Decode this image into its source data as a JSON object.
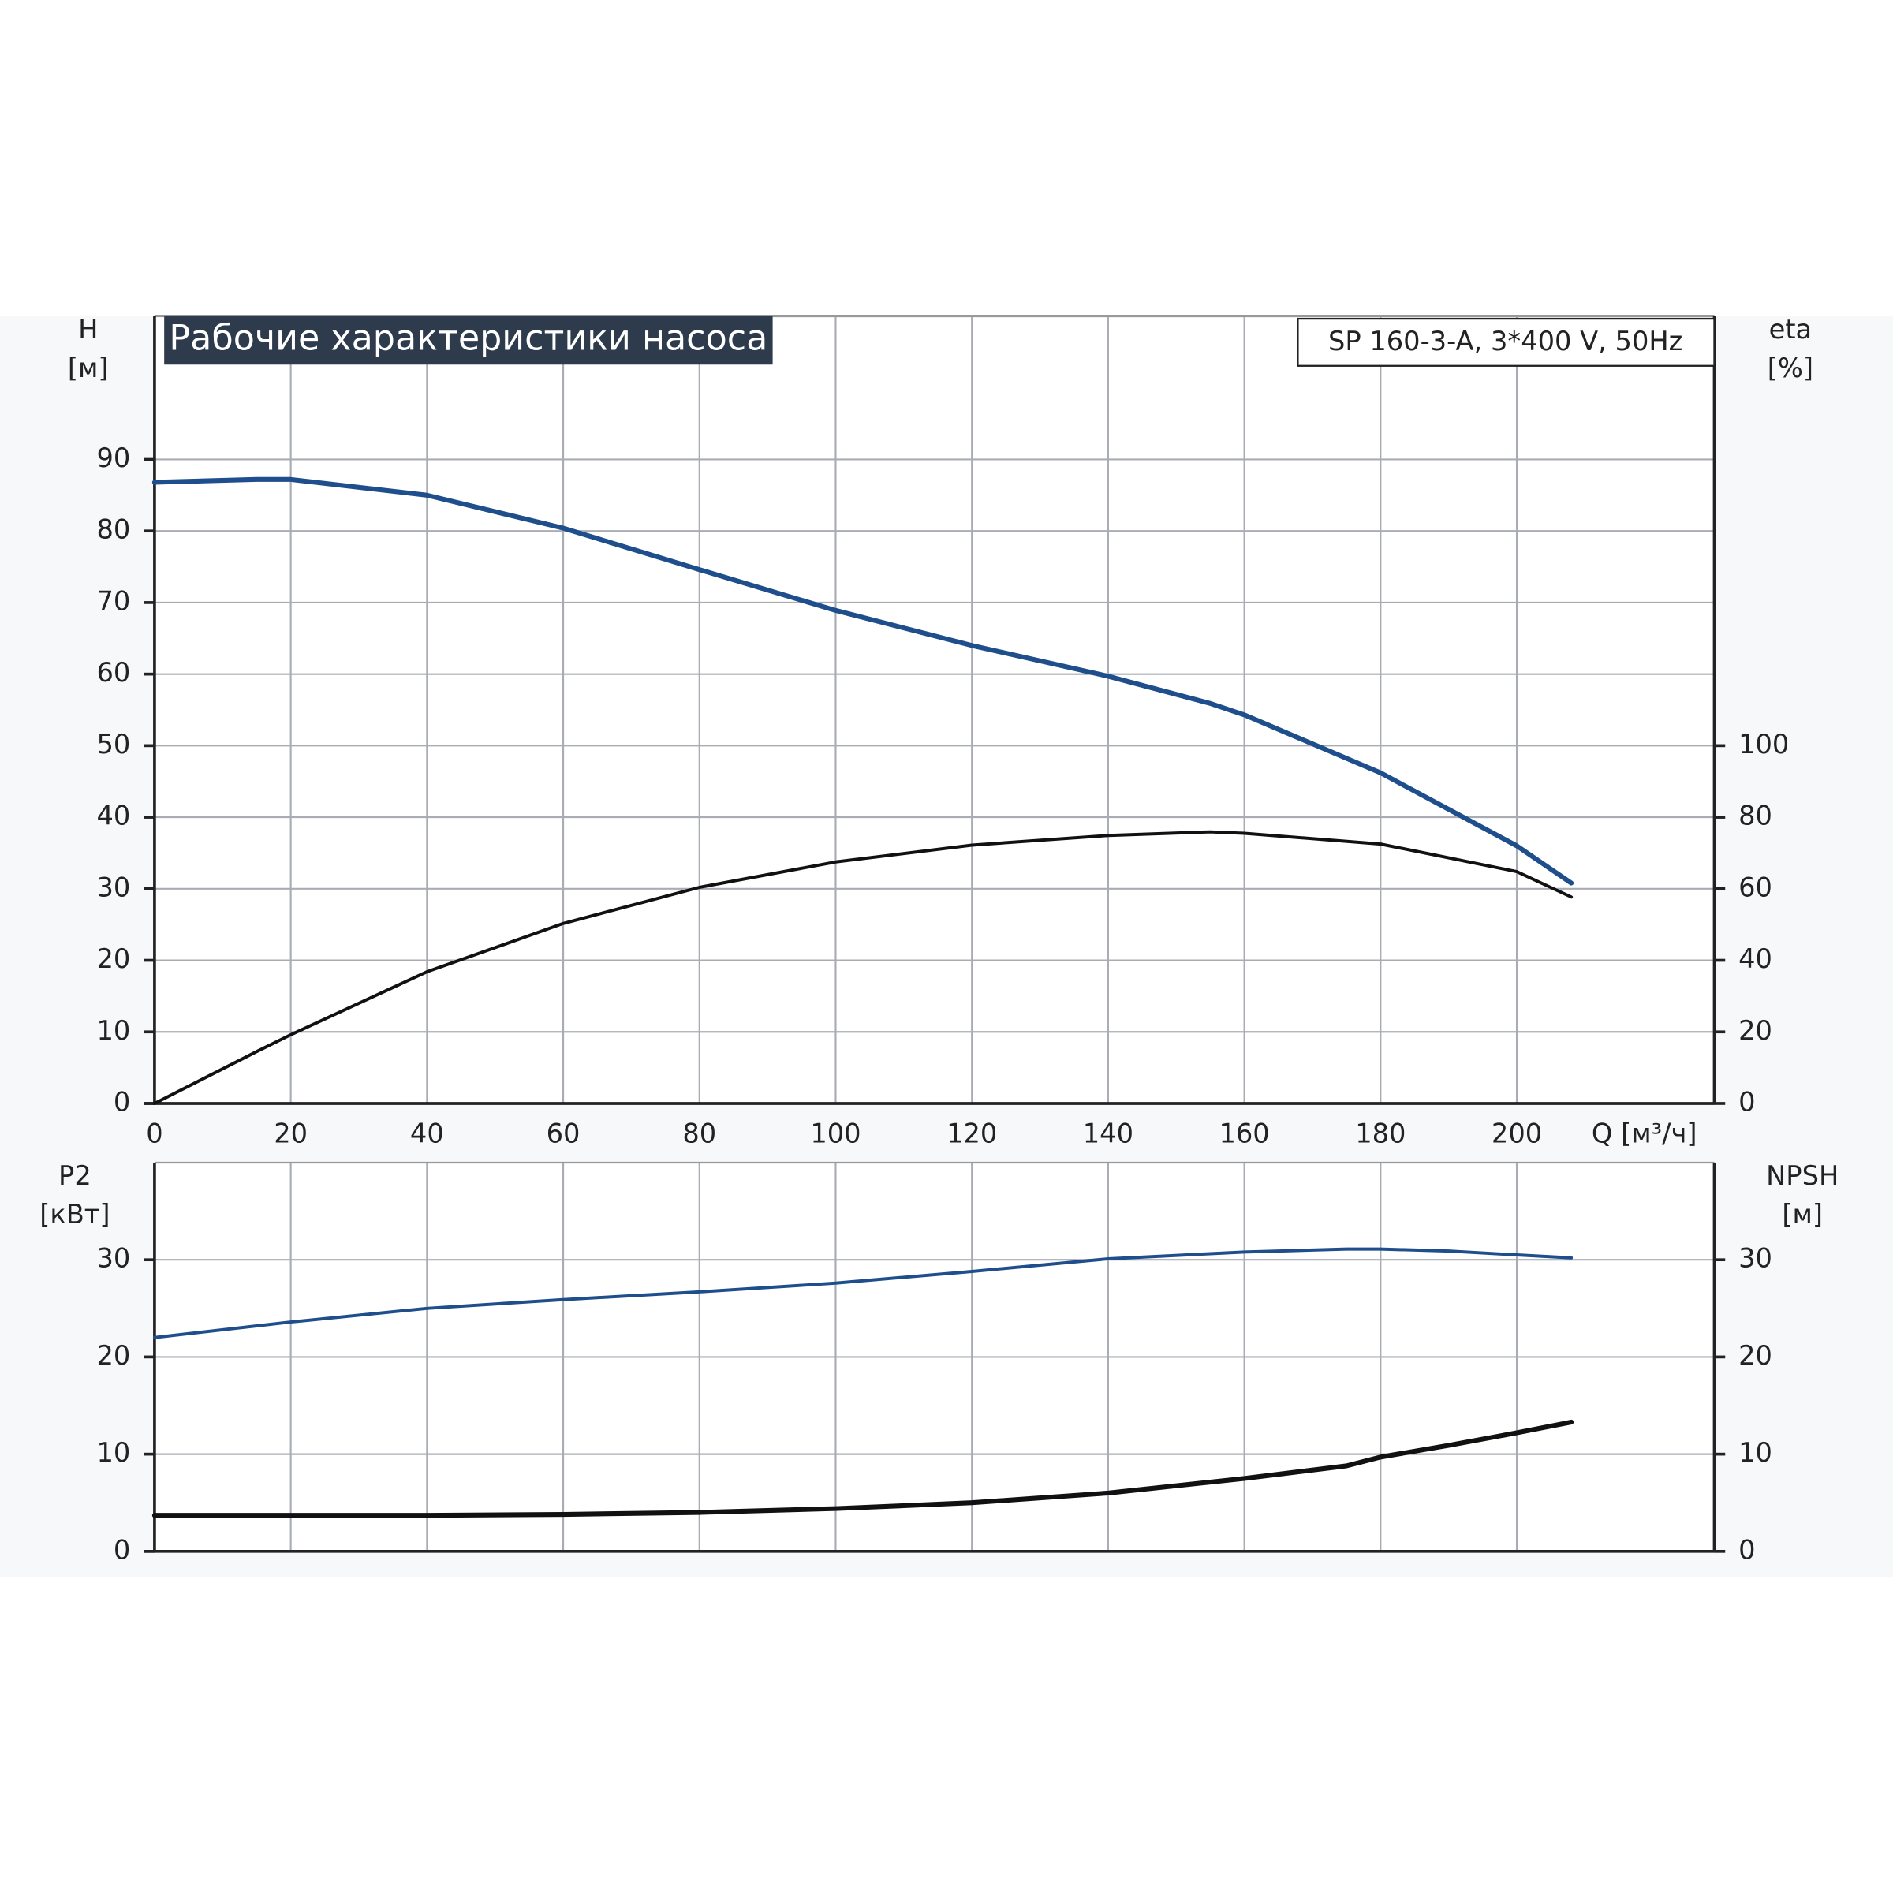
{
  "chart_data": [
    {
      "type": "line",
      "title": "Рабочие характеристики насоса",
      "subtitle": "SP 160-3-A, 3*400 V, 50Hz",
      "ylabel": "H",
      "yunit": "[м]",
      "y2label": "eta",
      "y2unit": "[%]",
      "xlabel": "Q [м³/ч]",
      "x": [
        0,
        15,
        20,
        40,
        60,
        80,
        100,
        120,
        140,
        155,
        160,
        180,
        200,
        208
      ],
      "series": [
        {
          "name": "H",
          "color": "#1f4e8c",
          "values": [
            86.8,
            87.2,
            87.2,
            85,
            80.4,
            74.6,
            68.9,
            64,
            59.7,
            55.9,
            54.3,
            46.2,
            36,
            30.8
          ]
        },
        {
          "name": "eta",
          "color": "#111111",
          "axis": "y2",
          "values": [
            0,
            14.5,
            19.2,
            36.8,
            50.3,
            60.4,
            67.5,
            72.2,
            74.9,
            75.9,
            75.5,
            72.5,
            64.8,
            57.7
          ]
        }
      ],
      "xlim": [
        0,
        229
      ],
      "xticks": [
        0,
        20,
        40,
        60,
        80,
        100,
        120,
        140,
        160,
        180,
        200
      ],
      "ylim": [
        0,
        110
      ],
      "yticks": [
        0,
        10,
        20,
        30,
        40,
        50,
        60,
        70,
        80,
        90
      ],
      "y2lim": [
        0,
        220
      ],
      "y2ticks": [
        0,
        20,
        40,
        60,
        80,
        100
      ],
      "grid": true
    },
    {
      "type": "line",
      "ylabel": "P2",
      "yunit": "[кВт]",
      "y2label": "NPSH",
      "y2unit": "[м]",
      "x": [
        0,
        15,
        20,
        40,
        60,
        80,
        100,
        120,
        140,
        160,
        175,
        180,
        190,
        200,
        208
      ],
      "series": [
        {
          "name": "P2",
          "color": "#1f4e8c",
          "values": [
            22,
            23.2,
            23.6,
            25,
            25.9,
            26.7,
            27.6,
            28.8,
            30.1,
            30.8,
            31.1,
            31.1,
            30.9,
            30.5,
            30.2
          ]
        },
        {
          "name": "NPSH",
          "color": "#111111",
          "axis": "y2",
          "values": [
            3.7,
            3.7,
            3.7,
            3.7,
            3.8,
            4,
            4.4,
            5,
            6,
            7.5,
            8.8,
            9.7,
            10.9,
            12.2,
            13.3
          ]
        }
      ],
      "xlim": [
        0,
        229
      ],
      "ylim": [
        0,
        40
      ],
      "yticks": [
        0,
        10,
        20,
        30
      ],
      "y2lim": [
        0,
        40
      ],
      "y2ticks": [
        0,
        10,
        20,
        30
      ],
      "grid": true
    }
  ]
}
